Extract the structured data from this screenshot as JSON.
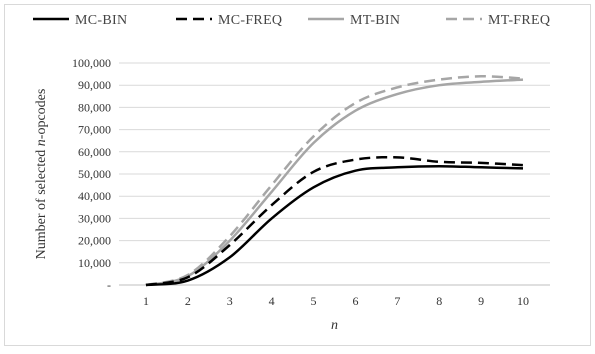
{
  "chart_data": {
    "type": "line",
    "title": "",
    "xlabel": "n",
    "ylabel_parts": [
      "Number of selected ",
      "n",
      "-opcodes"
    ],
    "x": [
      1,
      2,
      3,
      4,
      5,
      6,
      7,
      8,
      9,
      10
    ],
    "xlim": [
      1,
      10
    ],
    "ylim": [
      0,
      100000
    ],
    "y_ticks": [
      0,
      10000,
      20000,
      30000,
      40000,
      50000,
      60000,
      70000,
      80000,
      90000,
      100000
    ],
    "y_tick_labels": [
      "-",
      "10,000",
      "20,000",
      "30,000",
      "40,000",
      "50,000",
      "60,000",
      "70,000",
      "80,000",
      "90,000",
      "100,000"
    ],
    "x_tick_labels": [
      "1",
      "2",
      "3",
      "4",
      "5",
      "6",
      "7",
      "8",
      "9",
      "10"
    ],
    "grid": "horizontal",
    "legend_position": "top",
    "series": [
      {
        "name": "MC-BIN",
        "color": "#000000",
        "dash": "solid",
        "values": [
          0,
          2000,
          12500,
          30000,
          44000,
          51500,
          53000,
          53500,
          53000,
          52500
        ]
      },
      {
        "name": "MC-FREQ",
        "color": "#000000",
        "dash": "dashed",
        "values": [
          0,
          3500,
          18000,
          36000,
          51000,
          56500,
          57500,
          55500,
          55000,
          54000
        ]
      },
      {
        "name": "MT-BIN",
        "color": "#a6a6a6",
        "dash": "solid",
        "values": [
          0,
          4000,
          20000,
          42000,
          64000,
          78500,
          86000,
          90000,
          91500,
          92500
        ]
      },
      {
        "name": "MT-FREQ",
        "color": "#a6a6a6",
        "dash": "dashed",
        "values": [
          0,
          4500,
          22000,
          45000,
          67000,
          82000,
          89000,
          92500,
          94000,
          93000
        ]
      }
    ]
  }
}
